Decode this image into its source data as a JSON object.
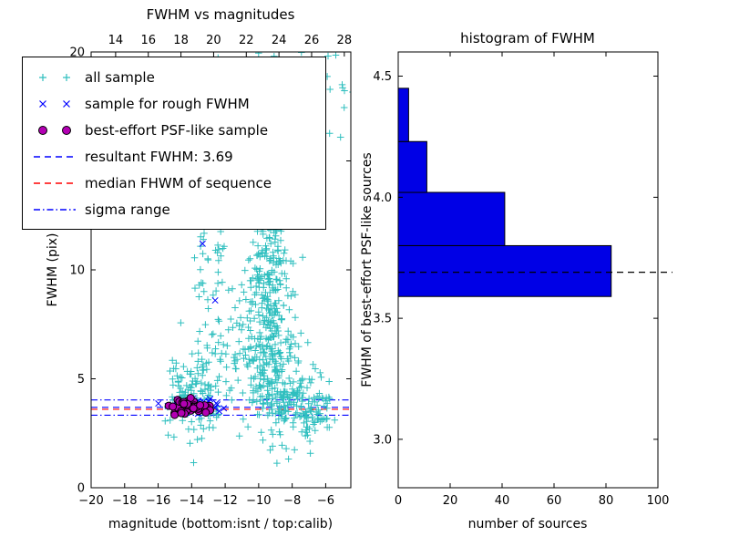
{
  "figure": {
    "background": "#ffffff"
  },
  "legend": {
    "items": [
      {
        "label": "all sample",
        "kind": "marker",
        "marker": "plus",
        "color": "#2fbfbf"
      },
      {
        "label": "sample for rough FWHM",
        "kind": "marker",
        "marker": "x",
        "color": "#0000ff"
      },
      {
        "label": "best-effort PSF-like sample",
        "kind": "marker",
        "marker": "circle",
        "color": "#b300b3",
        "edge": "#000000"
      },
      {
        "label": "resultant FWHM: 3.69",
        "kind": "line",
        "dash": "dashed",
        "color": "#0000ff"
      },
      {
        "label": "median FHWM of sequence",
        "kind": "line",
        "dash": "dashed",
        "color": "#ff0000"
      },
      {
        "label": "sigma range",
        "kind": "line",
        "dash": "dashdot",
        "color": "#0000ff"
      }
    ]
  },
  "chart_data": [
    {
      "type": "scatter",
      "title": "FWHM vs magnitudes",
      "xlabel": "magnitude (bottom:isnt / top:calib)",
      "ylabel": "FWHM (pix)",
      "xlim": [
        -20,
        -4.5
      ],
      "ylim": [
        0,
        20
      ],
      "xticks": [
        -20,
        -18,
        -16,
        -14,
        -12,
        -10,
        -8,
        -6
      ],
      "yticks": [
        0,
        5,
        10,
        15,
        20
      ],
      "xtick_decimals": 0,
      "ytick_decimals": 0,
      "top_axis": {
        "xlim": [
          12.5,
          28.4
        ],
        "xticks": [
          14,
          16,
          18,
          20,
          22,
          24,
          26,
          28
        ]
      },
      "grid": false,
      "seed": 7,
      "series": [
        {
          "name": "all sample",
          "marker": "plus",
          "color": "#2fbfbf",
          "clusters": [
            {
              "cx": -14.0,
              "cy": 4.3,
              "sx": 0.75,
              "sy": 1.0,
              "n": 110
            },
            {
              "cx": -13.3,
              "cy": 12.0,
              "sx": 0.25,
              "sy": 3.5,
              "n": 45
            },
            {
              "cx": -12.4,
              "cy": 13.0,
              "sx": 0.22,
              "sy": 3.8,
              "n": 40
            },
            {
              "cx": -12.9,
              "cy": 5.0,
              "sx": 0.5,
              "sy": 1.2,
              "n": 40
            },
            {
              "cx": -9.4,
              "cy": 10.5,
              "sx": 0.55,
              "sy": 3.8,
              "n": 330
            },
            {
              "cx": -9.0,
              "cy": 5.5,
              "sx": 0.9,
              "sy": 1.5,
              "n": 170
            },
            {
              "cx": -7.6,
              "cy": 4.0,
              "sx": 0.9,
              "sy": 0.8,
              "n": 90
            },
            {
              "cx": -10.9,
              "cy": 6.5,
              "sx": 0.7,
              "sy": 2.0,
              "n": 50
            },
            {
              "cx": -11.3,
              "cy": 15.5,
              "sx": 1.3,
              "sy": 2.8,
              "n": 25
            },
            {
              "cx": -6.2,
              "cy": 19.5,
              "sx": 1.0,
              "sy": 1.5,
              "n": 30
            },
            {
              "cx": -6.6,
              "cy": 3.3,
              "sx": 0.5,
              "sy": 0.4,
              "n": 30
            }
          ],
          "points": []
        },
        {
          "name": "sample for rough FWHM",
          "marker": "x",
          "color": "#0000ff",
          "clusters": [
            {
              "cx": -14.0,
              "cy": 3.75,
              "sx": 0.8,
              "sy": 0.18,
              "n": 45
            }
          ],
          "points": [
            [
              -13.35,
              11.2
            ],
            [
              -12.6,
              8.6
            ]
          ]
        },
        {
          "name": "best-effort PSF-like sample",
          "marker": "circle",
          "color": "#b300b3",
          "edge": "#000000",
          "clusters": [
            {
              "cx": -14.1,
              "cy": 3.72,
              "sx": 0.6,
              "sy": 0.15,
              "n": 55
            }
          ],
          "points": []
        }
      ],
      "hlines": [
        {
          "name": "resultant FWHM: 3.69",
          "y": 3.69,
          "color": "#0000ff",
          "dash": "dashed"
        },
        {
          "name": "median FHWM of sequence",
          "y": 3.6,
          "color": "#ff0000",
          "dash": "dashed"
        },
        {
          "name": "sigma range upper",
          "y": 4.03,
          "color": "#0000ff",
          "dash": "dashdot"
        },
        {
          "name": "sigma range lower",
          "y": 3.33,
          "color": "#0000ff",
          "dash": "dashdot"
        }
      ]
    },
    {
      "type": "bar",
      "orientation": "horizontal",
      "title": "histogram of FWHM",
      "xlabel": "number of sources",
      "ylabel": "FWHM of best-effort PSF-like sources",
      "xlim": [
        0,
        100
      ],
      "ylim": [
        2.8,
        4.6
      ],
      "xticks": [
        0,
        20,
        40,
        60,
        80,
        100
      ],
      "yticks": [
        3.0,
        3.5,
        4.0,
        4.5
      ],
      "xtick_decimals": 0,
      "ytick_decimals": 1,
      "bar_color": "#0000e6",
      "bar_edge": "#000000",
      "bins": [
        {
          "from": 3.59,
          "to": 3.8,
          "count": 82
        },
        {
          "from": 3.8,
          "to": 4.02,
          "count": 41
        },
        {
          "from": 4.02,
          "to": 4.23,
          "count": 11
        },
        {
          "from": 4.23,
          "to": 4.45,
          "count": 4
        }
      ],
      "marker_line": {
        "y": 3.69,
        "color": "#000000",
        "dash": "dashed"
      }
    }
  ]
}
